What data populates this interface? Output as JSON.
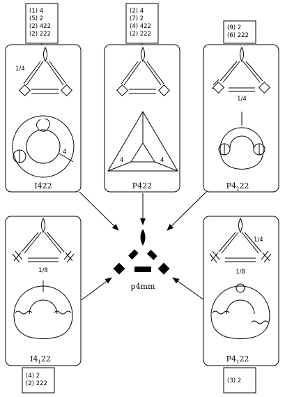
{
  "panels": [
    {
      "id": "i422",
      "name": "I422",
      "sub": "",
      "suffix": "",
      "orbits": [
        "(1)  4",
        "(5)  2",
        "(2)  422",
        "(2)  222"
      ],
      "top_fraction": "1/4",
      "bottom_fraction": "",
      "knot_label": "4"
    },
    {
      "id": "p422",
      "name": "P422",
      "sub": "",
      "suffix": "",
      "orbits": [
        "(2)  4",
        "(7)  2",
        "(4)  422",
        "(2)  222"
      ],
      "top_fraction": "",
      "bottom_fraction": "",
      "tri_label_left": "4",
      "tri_label_right": "4"
    },
    {
      "id": "p4222",
      "name": "P4",
      "sub": "2",
      "suffix": "22",
      "orbits": [
        "(9)  2",
        "(6)  222"
      ],
      "top_fraction": "",
      "bottom_fraction": "1/4"
    },
    {
      "id": "i4122",
      "name": "I4",
      "sub": "1",
      "suffix": "22",
      "orbits": [
        "(4)  2",
        "(2)  222"
      ],
      "top_fraction": "",
      "bottom_fraction": "1/8"
    },
    {
      "id": "p4122",
      "name": "P4",
      "sub": "1",
      "suffix": "22",
      "orbits": [
        "(3)  2"
      ],
      "top_fraction": "1/4",
      "bottom_fraction": "1/8"
    }
  ],
  "center": {
    "label": "p4mm"
  }
}
